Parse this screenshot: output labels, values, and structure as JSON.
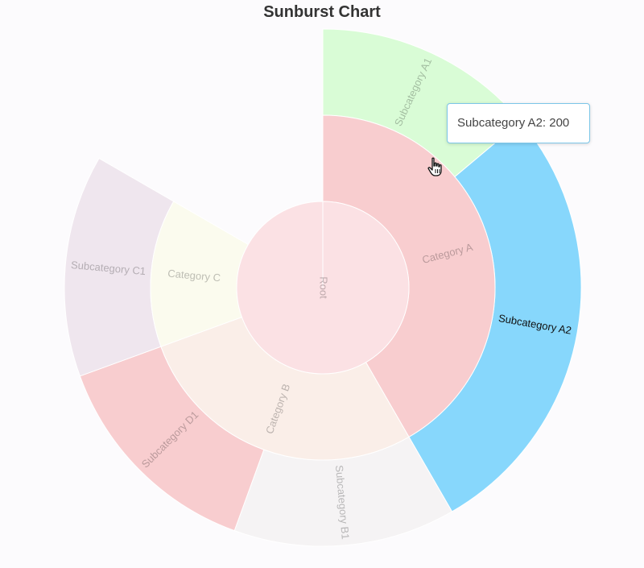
{
  "title": "Sunburst Chart",
  "tooltip": {
    "name": "Subcategory A2",
    "value": 200,
    "text": "Subcategory A2: 200"
  },
  "chart_data": {
    "type": "sunburst",
    "title": "Sunburst Chart",
    "hovered": "Subcategory A2",
    "root": {
      "name": "Root",
      "color": "#fbe1e4",
      "children": [
        {
          "name": "Category A",
          "value": 300,
          "color": "#f8cdcf",
          "children": [
            {
              "name": "Subcategory A1",
              "value": 100,
              "color": "#d9fcd6"
            },
            {
              "name": "Subcategory A2",
              "value": 200,
              "color": "#87d7fc"
            }
          ]
        },
        {
          "name": "Category B",
          "value": 200,
          "color": "#faeee8",
          "children": [
            {
              "name": "Subcategory B1",
              "value": 100,
              "color": "#f5f3f4"
            },
            {
              "name": "Subcategory D1",
              "value": 100,
              "color": "#f8cdcf"
            }
          ]
        },
        {
          "name": "Category C",
          "value": 100,
          "color": "#fbfbee",
          "children": [
            {
              "name": "Subcategory C1",
              "value": 100,
              "color": "#efe6ee"
            }
          ]
        }
      ]
    }
  }
}
